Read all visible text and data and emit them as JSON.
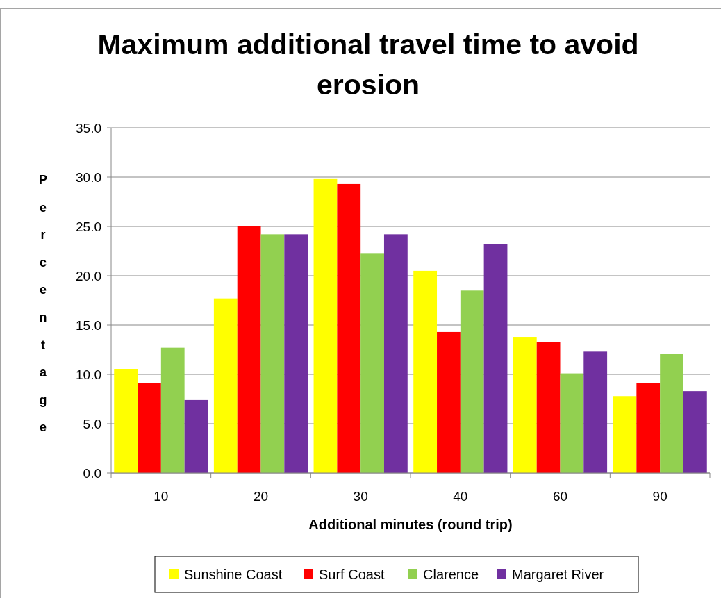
{
  "chart_data": {
    "type": "bar",
    "title": "Maximum additional travel time to avoid erosion",
    "xlabel": "Additional minutes (round trip)",
    "ylabel": "Percentage",
    "categories": [
      "10",
      "20",
      "30",
      "40",
      "60",
      "90"
    ],
    "series": [
      {
        "name": "Sunshine Coast",
        "color": "#ffff00",
        "values": [
          10.5,
          17.7,
          29.8,
          20.5,
          13.8,
          7.8
        ]
      },
      {
        "name": "Surf Coast",
        "color": "#ff0000",
        "values": [
          9.1,
          25.0,
          29.3,
          14.3,
          13.3,
          9.1
        ]
      },
      {
        "name": "Clarence",
        "color": "#92d050",
        "values": [
          12.7,
          24.2,
          22.3,
          18.5,
          10.1,
          12.1
        ]
      },
      {
        "name": "Margaret River",
        "color": "#7030a0",
        "values": [
          7.4,
          24.2,
          24.2,
          23.2,
          12.3,
          8.3
        ]
      }
    ],
    "ylim": [
      0,
      35
    ],
    "yticks": [
      {
        "value": 0,
        "label": "0.0"
      },
      {
        "value": 5,
        "label": "5.0"
      },
      {
        "value": 10,
        "label": "10.0"
      },
      {
        "value": 15,
        "label": "15.0"
      },
      {
        "value": 20,
        "label": "20.0"
      },
      {
        "value": 25,
        "label": "25.0"
      },
      {
        "value": 30,
        "label": "30.0"
      },
      {
        "value": 35,
        "label": "35.0"
      }
    ],
    "grid": "y",
    "legend": "bottom"
  }
}
